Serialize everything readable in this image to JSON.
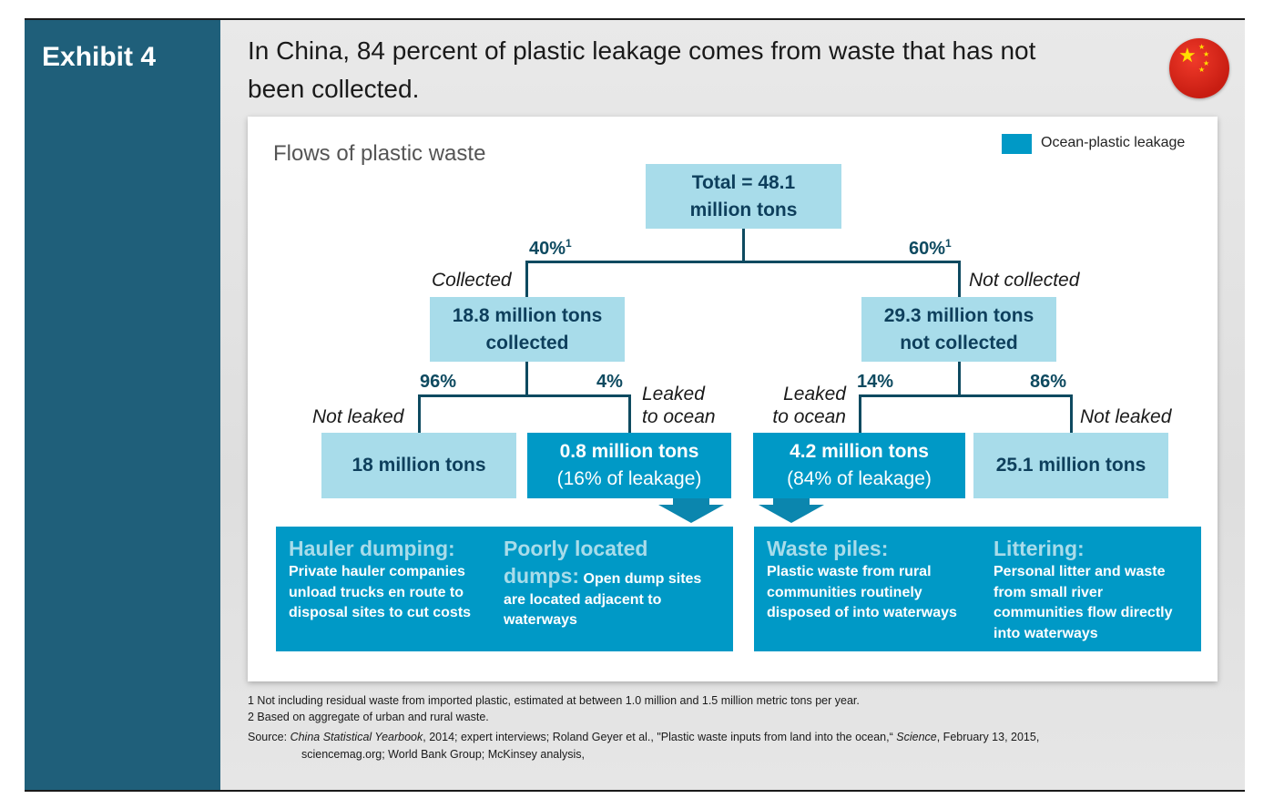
{
  "exhibit_label": "Exhibit 4",
  "headline": "In China, 84 percent of plastic leakage comes from waste that has not been collected.",
  "subtitle": "Flows of plastic waste",
  "legend": {
    "label": "Ocean-plastic leakage",
    "color": "#0099c6"
  },
  "flag_icon": "china-flag-icon",
  "total": {
    "line1": "Total = 48.1",
    "line2": "million tons"
  },
  "left_branch": {
    "pct": "40%",
    "sup": "1",
    "label": "Collected",
    "box_line1": "18.8 million tons",
    "box_line2": "collected"
  },
  "right_branch": {
    "pct": "60%",
    "sup": "1",
    "label": "Not collected",
    "box_line1": "29.3 million tons",
    "box_line2": "not collected"
  },
  "leaves": {
    "ll": {
      "pct": "96%",
      "label": "Not leaked",
      "box": "18 million tons"
    },
    "lr": {
      "pct": "4%",
      "label_line1": "Leaked",
      "label_line2": "to ocean",
      "box_line1": "0.8 million tons",
      "box_line2": "(16% of leakage)"
    },
    "rl": {
      "pct": "14%",
      "label_line1": "Leaked",
      "label_line2": "to ocean",
      "box_line1": "4.2 million tons",
      "box_line2": "(84% of leakage)"
    },
    "rr": {
      "pct": "86%",
      "label": "Not leaked",
      "box": "25.1 million tons"
    }
  },
  "causes": [
    {
      "heading": "Hauler dumping:",
      "text": [
        "Private hauler companies",
        "unload trucks en route to",
        "disposal sites to cut costs"
      ]
    },
    {
      "heading1": "Poorly located",
      "heading2": "dumps:",
      "text_inline": "Open dump sites",
      "text": [
        "are located adjacent to",
        "waterways"
      ]
    },
    {
      "heading": "Waste piles:",
      "text": [
        "Plastic waste from rural",
        "communities routinely",
        "disposed of into waterways"
      ]
    },
    {
      "heading": "Littering:",
      "text": [
        "Personal litter and waste",
        "from small river",
        "communities flow directly",
        "into waterways"
      ]
    }
  ],
  "footnotes": {
    "f1": "1 Not including residual waste from imported plastic, estimated at between 1.0 million and 1.5 million metric tons per year.",
    "f2": "2 Based on aggregate of urban and rural waste.",
    "source_prefix": "Source: ",
    "source_book": "China Statistical Yearbook",
    "source_mid": ", 2014; expert interviews; Roland Geyer et al., \"Plastic waste inputs from land into the ocean,“ ",
    "source_journal": "Science",
    "source_end": ", February 13, 2015,",
    "source_line2": "sciencemag.org; World Bank Group; McKinsey analysis,"
  }
}
